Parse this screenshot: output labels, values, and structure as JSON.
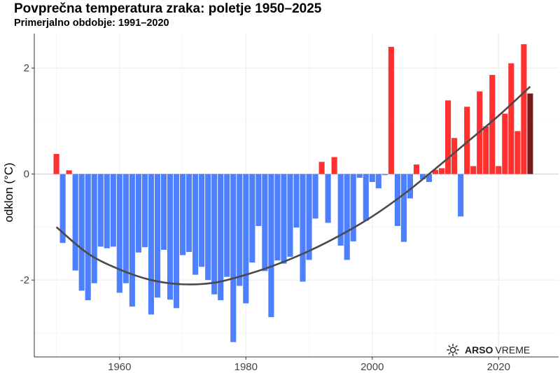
{
  "header": {
    "title": "Povprečna temperatura zraka: poletje 1950–2025",
    "subtitle": "Primerjalno obdobje: 1991–2020"
  },
  "logo": {
    "brand": "ARSO",
    "product": "VREME",
    "icon": "sun-icon"
  },
  "colors": {
    "positive": "#ff3030",
    "negative": "#4d7fff",
    "current": "#7a1c1c",
    "trend": "#4a4a4a",
    "grid": "#ebebeb",
    "baseline": "#cccccc"
  },
  "chart_data": {
    "type": "bar",
    "title": "Povprečna temperatura zraka: poletje 1950–2025",
    "subtitle": "Primerjalno obdobje: 1991–2020",
    "xlabel": "",
    "ylabel": "odklon (°C)",
    "xlim": [
      1946.5,
      2029.5
    ],
    "ylim": [
      -3.45,
      2.65
    ],
    "x_ticks": [
      1960,
      1980,
      2000,
      2020
    ],
    "y_ticks": [
      2,
      0,
      -2
    ],
    "y_tick_labels": [
      "2",
      "0",
      "-2"
    ],
    "grid": true,
    "x": [
      1950,
      1951,
      1952,
      1953,
      1954,
      1955,
      1956,
      1957,
      1958,
      1959,
      1960,
      1961,
      1962,
      1963,
      1964,
      1965,
      1966,
      1967,
      1968,
      1969,
      1970,
      1971,
      1972,
      1973,
      1974,
      1975,
      1976,
      1977,
      1978,
      1979,
      1980,
      1981,
      1982,
      1983,
      1984,
      1985,
      1986,
      1987,
      1988,
      1989,
      1990,
      1991,
      1992,
      1993,
      1994,
      1995,
      1996,
      1997,
      1998,
      1999,
      2000,
      2001,
      2002,
      2003,
      2004,
      2005,
      2006,
      2007,
      2008,
      2009,
      2010,
      2011,
      2012,
      2013,
      2014,
      2015,
      2016,
      2017,
      2018,
      2019,
      2020,
      2021,
      2022,
      2023,
      2024,
      2025
    ],
    "values": [
      0.38,
      -1.3,
      0.07,
      -1.82,
      -2.2,
      -2.38,
      -2.06,
      -1.37,
      -1.4,
      -1.37,
      -2.24,
      -2.06,
      -2.5,
      -1.48,
      -1.38,
      -2.65,
      -2.33,
      -1.43,
      -2.37,
      -2.53,
      -1.53,
      -1.47,
      -1.9,
      -1.75,
      -2.0,
      -2.27,
      -2.38,
      -1.94,
      -3.17,
      -2.11,
      -2.44,
      -1.67,
      -0.98,
      -1.83,
      -2.7,
      -1.63,
      -1.69,
      -1.56,
      -1.01,
      -2.03,
      -1.62,
      -0.84,
      0.23,
      -0.92,
      0.32,
      -1.35,
      -1.62,
      -1.27,
      -0.07,
      -0.88,
      -0.15,
      -0.27,
      -0.02,
      2.4,
      -0.98,
      -1.28,
      -0.46,
      0.18,
      -0.1,
      -0.15,
      0.08,
      0.11,
      1.39,
      0.68,
      -0.8,
      1.27,
      0.15,
      1.56,
      0.9,
      1.87,
      0.15,
      1.14,
      2.09,
      0.81,
      2.45,
      1.52
    ],
    "trend_line": {
      "x": [
        1950,
        1955,
        1960,
        1965,
        1970,
        1975,
        1980,
        1985,
        1990,
        1995,
        2000,
        2005,
        2010,
        2015,
        2020,
        2025
      ],
      "y": [
        -1.0,
        -1.5,
        -1.8,
        -2.0,
        -2.08,
        -2.05,
        -1.9,
        -1.7,
        -1.45,
        -1.15,
        -0.8,
        -0.38,
        0.1,
        0.6,
        1.1,
        1.65
      ]
    }
  }
}
